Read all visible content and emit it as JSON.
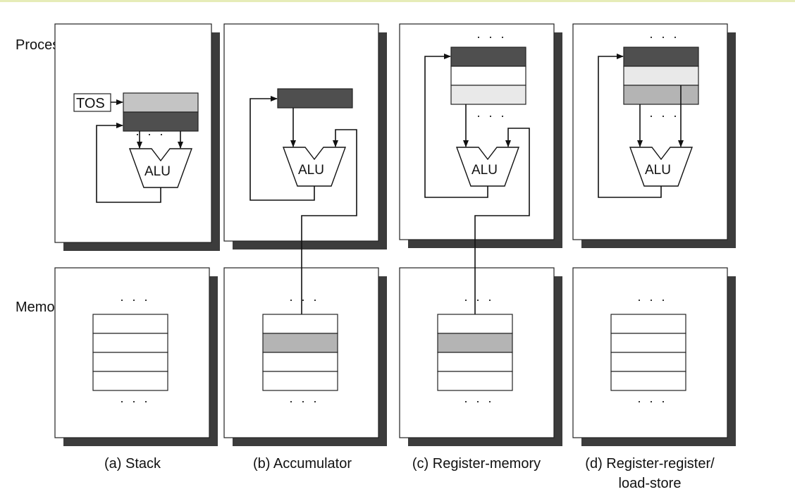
{
  "colors": {
    "top_border": "#e6ecb8",
    "shadow": "#3c3c3c",
    "dark_register": "#4f4f4f",
    "mid_gray": "#b4b4b4",
    "light_gray": "#e9e9e9",
    "stack_tos": "#c4c4c4"
  },
  "row_labels": {
    "processor": "Processor",
    "memory": "Memory"
  },
  "alu_label": "ALU",
  "ellipsis": "· · ·",
  "architectures": [
    {
      "id": "stack",
      "caption": "(a) Stack",
      "tos_label": "TOS"
    },
    {
      "id": "accumulator",
      "caption": "(b) Accumulator"
    },
    {
      "id": "register-memory",
      "caption": "(c) Register-memory"
    },
    {
      "id": "register-register",
      "caption_line1": "(d) Register-register/",
      "caption_line2": "load-store"
    }
  ]
}
